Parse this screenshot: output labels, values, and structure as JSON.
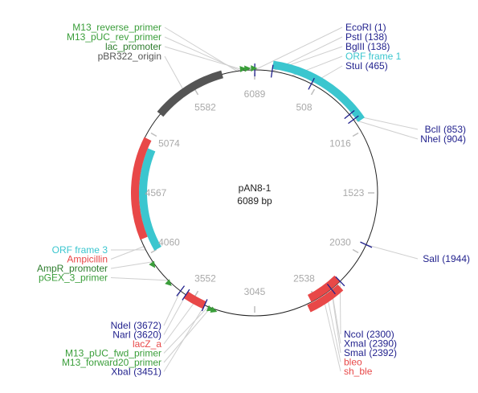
{
  "plasmid": {
    "name": "pAN8-1",
    "size_label": "6089 bp",
    "length": 6089
  },
  "colors": {
    "enzyme": "#1f1f8c",
    "primer": "#3a9e3a",
    "promoter": "#2e7d2e",
    "orf": "#3bc6cf",
    "resistance": "#e84848",
    "origin": "#555555",
    "leader_line": "#cfcfcf",
    "tick": "#bdbdbd",
    "backbone": "#222222"
  },
  "tick_labels": [
    "6089",
    "508",
    "1016",
    "1523",
    "2030",
    "2538",
    "3045",
    "3552",
    "4060",
    "4567",
    "5074",
    "5582"
  ],
  "features": [
    {
      "name": "ORF frame 1",
      "type": "orf",
      "start": 138,
      "end": 940
    },
    {
      "name": "ORF frame 3",
      "type": "orf",
      "start": 4060,
      "end": 4950
    },
    {
      "name": "Ampicillin",
      "type": "resistance",
      "start": 4190,
      "end": 5020
    },
    {
      "name": "bleo",
      "type": "resistance",
      "start": 2300,
      "end": 2580
    },
    {
      "name": "sh_ble",
      "type": "resistance",
      "start": 2330,
      "end": 2620
    },
    {
      "name": "lacZ_a",
      "type": "resistance",
      "start": 3451,
      "end": 3620
    },
    {
      "name": "pBR322_origin",
      "type": "origin",
      "start": 5240,
      "end": 5830
    }
  ],
  "right_labels": [
    {
      "text": "EcoRI (1)",
      "kind": "enzyme",
      "pos": 1
    },
    {
      "text": "PstI (138)",
      "kind": "enzyme",
      "pos": 138
    },
    {
      "text": "BglII (138)",
      "kind": "enzyme",
      "pos": 138
    },
    {
      "text": "ORF frame 1",
      "kind": "orf",
      "pos": 300
    },
    {
      "text": "StuI (465)",
      "kind": "enzyme",
      "pos": 465
    },
    {
      "text": "BclI (853)",
      "kind": "enzyme",
      "pos": 853
    },
    {
      "text": "NheI (904)",
      "kind": "enzyme",
      "pos": 904
    },
    {
      "text": "SalI (1944)",
      "kind": "enzyme",
      "pos": 1944
    },
    {
      "text": "NcoI (2300)",
      "kind": "enzyme",
      "pos": 2300
    },
    {
      "text": "XmaI (2390)",
      "kind": "enzyme",
      "pos": 2390
    },
    {
      "text": "SmaI (2392)",
      "kind": "enzyme",
      "pos": 2392
    },
    {
      "text": "bleo",
      "kind": "resistance",
      "pos": 2440
    },
    {
      "text": "sh_ble",
      "kind": "resistance",
      "pos": 2475
    }
  ],
  "left_labels": [
    {
      "text": "M13_reverse_primer",
      "kind": "primer",
      "pos": 5950
    },
    {
      "text": "M13_pUC_rev_primer",
      "kind": "primer",
      "pos": 5975
    },
    {
      "text": "lac_promoter",
      "kind": "promoter",
      "pos": 6010
    },
    {
      "text": "pBR322_origin",
      "kind": "origin",
      "pos": 5500
    },
    {
      "text": "ORF frame 3",
      "kind": "orf",
      "pos": 4100
    },
    {
      "text": "Ampicillin",
      "kind": "resistance",
      "pos": 4130
    },
    {
      "text": "AmpR_promoter",
      "kind": "promoter",
      "pos": 3990
    },
    {
      "text": "pGEX_3_primer",
      "kind": "primer",
      "pos": 3800
    },
    {
      "text": "NdeI (3672)",
      "kind": "enzyme",
      "pos": 3672
    },
    {
      "text": "NarI (3620)",
      "kind": "enzyme",
      "pos": 3620
    },
    {
      "text": "lacZ_a",
      "kind": "resistance",
      "pos": 3530
    },
    {
      "text": "M13_pUC_fwd_primer",
      "kind": "primer",
      "pos": 3420
    },
    {
      "text": "M13_forward20_primer",
      "kind": "primer",
      "pos": 3400
    },
    {
      "text": "XbaI (3451)",
      "kind": "enzyme",
      "pos": 3451
    }
  ],
  "site_marks": [
    1,
    138,
    465,
    853,
    904,
    1944,
    2300,
    2392,
    3451,
    3620,
    3672
  ],
  "primer_marks": [
    {
      "pos": 5975,
      "dir": "cw"
    },
    {
      "pos": 6010,
      "dir": "cw"
    },
    {
      "pos": 6060,
      "dir": "cw"
    },
    {
      "pos": 3800,
      "dir": "ccw"
    },
    {
      "pos": 3990,
      "dir": "ccw"
    },
    {
      "pos": 3390,
      "dir": "ccw"
    },
    {
      "pos": 3420,
      "dir": "ccw"
    }
  ]
}
